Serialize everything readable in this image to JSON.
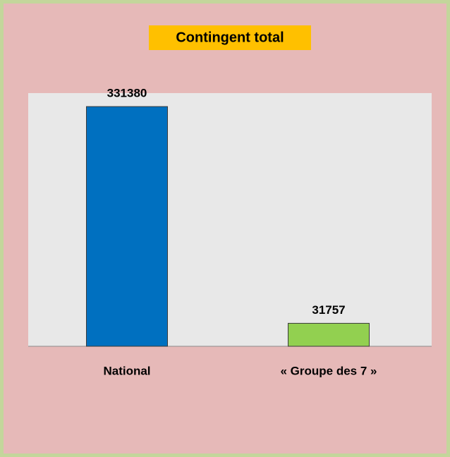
{
  "chart_data": {
    "type": "bar",
    "title": "Contingent total",
    "categories": [
      "National",
      "« Groupe des 7 »"
    ],
    "values": [
      331380,
      31757
    ],
    "colors": [
      "#0070c0",
      "#92d050"
    ],
    "ylim": [
      0,
      350000
    ]
  }
}
